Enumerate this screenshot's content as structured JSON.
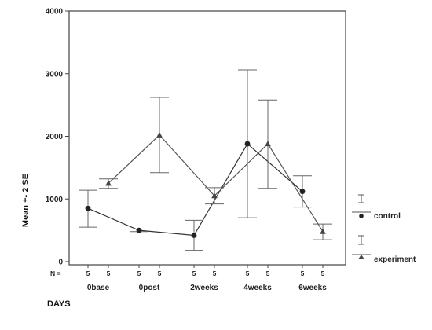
{
  "chart_data": {
    "type": "line",
    "xlabel": "DAYS",
    "ylabel": "Mean +- 2 SE",
    "ylim": [
      0,
      4000
    ],
    "yticks": [
      0,
      1000,
      2000,
      3000,
      4000
    ],
    "n_label": "N =",
    "categories": [
      "0base",
      "0post",
      "2weeks",
      "4weeks",
      "6weeks"
    ],
    "n_counts": [
      [
        "5",
        "5"
      ],
      [
        "5",
        "5"
      ],
      [
        "5",
        "5"
      ],
      [
        "5",
        "5"
      ],
      [
        "5",
        "5"
      ]
    ],
    "legend_position": "right",
    "series": [
      {
        "name": "control",
        "marker": "circle",
        "color": "#333333",
        "means": [
          850,
          500,
          420,
          1880,
          1120
        ],
        "lower": [
          550,
          480,
          180,
          700,
          870
        ],
        "upper": [
          1140,
          520,
          660,
          3060,
          1370
        ]
      },
      {
        "name": "experiment",
        "marker": "triangle",
        "color": "#555555",
        "means": [
          1250,
          2020,
          1050,
          1880,
          480
        ],
        "lower": [
          1170,
          1420,
          920,
          1170,
          350
        ],
        "upper": [
          1320,
          2620,
          1180,
          2580,
          600
        ]
      }
    ]
  }
}
